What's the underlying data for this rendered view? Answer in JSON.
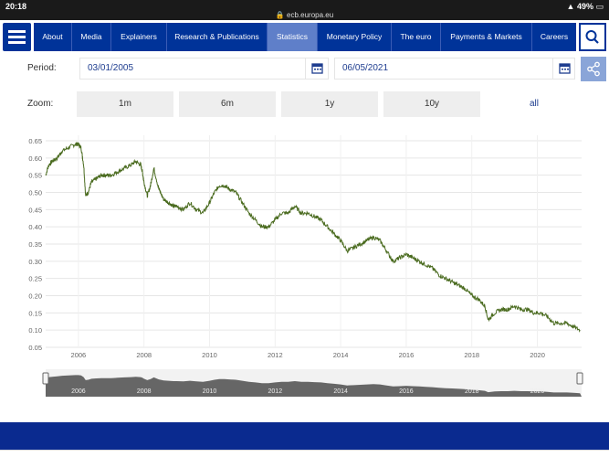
{
  "status": {
    "time": "20:18",
    "url": "ecb.europa.eu",
    "battery": "49%"
  },
  "nav": {
    "items": [
      "About",
      "Media",
      "Explainers",
      "Research & Publications",
      "Statistics",
      "Monetary Policy",
      "The euro",
      "Payments & Markets",
      "Careers"
    ],
    "active": "Statistics"
  },
  "period": {
    "label": "Period:",
    "from": "03/01/2005",
    "to": "06/05/2021"
  },
  "zoom": {
    "label": "Zoom:",
    "options": [
      "1m",
      "6m",
      "1y",
      "10y"
    ],
    "all": "all"
  },
  "chart_data": {
    "type": "line",
    "title": "",
    "xlabel": "",
    "ylabel": "",
    "ylim": [
      0.05,
      0.65
    ],
    "yticks": [
      "0.65",
      "0.60",
      "0.55",
      "0.50",
      "0.45",
      "0.40",
      "0.35",
      "0.30",
      "0.25",
      "0.20",
      "0.15",
      "0.10",
      "0.05"
    ],
    "xticks": [
      "2006",
      "2008",
      "2010",
      "2012",
      "2014",
      "2016",
      "2018",
      "2020"
    ],
    "grid": "horizontal",
    "series_color": "#4a6b1f",
    "navigator_color": "#666666",
    "series": [
      {
        "x": [
          2005.0,
          2005.1,
          2005.2,
          2005.35,
          2005.5,
          2005.7,
          2005.9,
          2006.0,
          2006.08,
          2006.16,
          2006.22,
          2006.3,
          2006.4,
          2006.55,
          2006.7,
          2006.85,
          2007.0,
          2007.2,
          2007.4,
          2007.6,
          2007.75,
          2007.9,
          2007.95,
          2008.0,
          2008.1,
          2008.2,
          2008.3,
          2008.45,
          2008.6,
          2008.75,
          2008.9,
          2009.0,
          2009.2,
          2009.4,
          2009.6,
          2009.8,
          2010.0,
          2010.15,
          2010.3,
          2010.45,
          2010.6,
          2010.8,
          2011.0,
          2011.2,
          2011.4,
          2011.6,
          2011.8,
          2012.0,
          2012.2,
          2012.4,
          2012.6,
          2012.8,
          2013.0,
          2013.2,
          2013.4,
          2013.6,
          2013.8,
          2014.0,
          2014.2,
          2014.4,
          2014.6,
          2014.8,
          2015.0,
          2015.2,
          2015.4,
          2015.6,
          2015.8,
          2016.0,
          2016.2,
          2016.4,
          2016.6,
          2016.8,
          2017.0,
          2017.2,
          2017.4,
          2017.6,
          2017.8,
          2018.0,
          2018.2,
          2018.4,
          2018.5,
          2018.7,
          2018.9,
          2019.1,
          2019.3,
          2019.5,
          2019.7,
          2019.9,
          2020.1,
          2020.3,
          2020.5,
          2020.7,
          2020.9,
          2021.1,
          2021.3
        ],
        "y": [
          0.55,
          0.58,
          0.59,
          0.6,
          0.62,
          0.63,
          0.64,
          0.64,
          0.63,
          0.58,
          0.49,
          0.5,
          0.53,
          0.54,
          0.55,
          0.55,
          0.55,
          0.56,
          0.57,
          0.58,
          0.59,
          0.58,
          0.56,
          0.53,
          0.49,
          0.52,
          0.57,
          0.51,
          0.48,
          0.47,
          0.46,
          0.46,
          0.45,
          0.47,
          0.45,
          0.44,
          0.47,
          0.5,
          0.52,
          0.52,
          0.51,
          0.5,
          0.47,
          0.44,
          0.42,
          0.4,
          0.4,
          0.42,
          0.44,
          0.44,
          0.46,
          0.44,
          0.44,
          0.43,
          0.42,
          0.4,
          0.38,
          0.36,
          0.33,
          0.34,
          0.35,
          0.36,
          0.37,
          0.36,
          0.33,
          0.3,
          0.31,
          0.32,
          0.31,
          0.3,
          0.29,
          0.28,
          0.26,
          0.25,
          0.24,
          0.23,
          0.22,
          0.2,
          0.19,
          0.17,
          0.13,
          0.15,
          0.16,
          0.16,
          0.17,
          0.16,
          0.16,
          0.15,
          0.15,
          0.14,
          0.12,
          0.12,
          0.12,
          0.11,
          0.1
        ]
      }
    ]
  }
}
